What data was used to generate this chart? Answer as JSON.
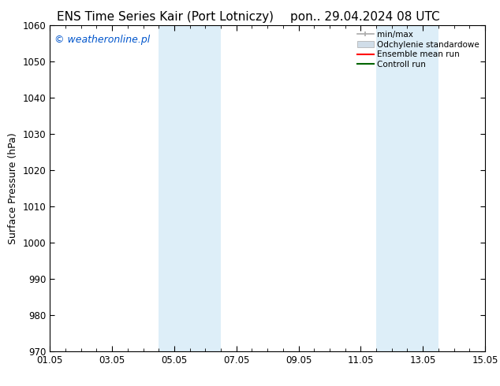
{
  "title_left": "ENS Time Series Kair (Port Lotniczy)",
  "title_right": "pon.. 29.04.2024 08 UTC",
  "ylabel": "Surface Pressure (hPa)",
  "xlim_start": 0.0,
  "xlim_end": 14.0,
  "ylim_bottom": 970,
  "ylim_top": 1060,
  "yticks": [
    970,
    980,
    990,
    1000,
    1010,
    1020,
    1030,
    1040,
    1050,
    1060
  ],
  "xtick_positions": [
    0,
    2,
    4,
    6,
    8,
    10,
    12,
    14
  ],
  "xtick_labels": [
    "01.05",
    "03.05",
    "05.05",
    "07.05",
    "09.05",
    "11.05",
    "13.05",
    "15.05"
  ],
  "shaded_regions": [
    {
      "xmin": 3.5,
      "xmax": 4.5
    },
    {
      "xmin": 4.5,
      "xmax": 5.5
    },
    {
      "xmin": 10.5,
      "xmax": 11.5
    },
    {
      "xmin": 11.5,
      "xmax": 12.5
    }
  ],
  "shaded_color": "#ddeef8",
  "background_color": "#ffffff",
  "watermark_text": "© weatheronline.pl",
  "watermark_color": "#0055cc",
  "title_fontsize": 11,
  "axis_label_fontsize": 9,
  "tick_fontsize": 8.5,
  "legend_fontsize": 7.5
}
